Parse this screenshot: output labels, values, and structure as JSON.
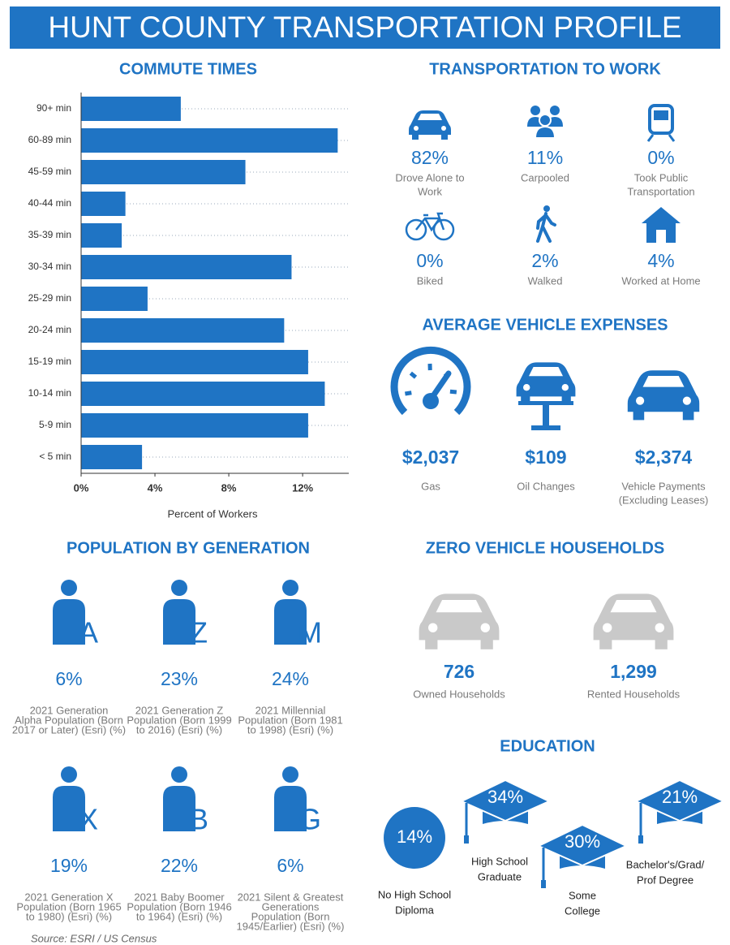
{
  "title": "HUNT COUNTY TRANSPORTATION PROFILE",
  "chart_data": {
    "type": "bar",
    "orientation": "horizontal",
    "title": "COMMUTE TIMES",
    "x_label": "Percent of Workers",
    "categories": [
      "90+ min",
      "60-89 min",
      "45-59 min",
      "40-44 min",
      "35-39 min",
      "30-34 min",
      "25-29 min",
      "20-24 min",
      "15-19 min",
      "10-14 min",
      "5-9 min",
      "< 5 min"
    ],
    "values": [
      5.4,
      13.9,
      8.9,
      2.4,
      2.2,
      11.4,
      3.6,
      11.0,
      12.3,
      13.2,
      12.3,
      3.3
    ],
    "color": "#1f74c4",
    "xlim": [
      0,
      14.5
    ],
    "xticks": [
      {
        "value": 0,
        "label": "0%"
      },
      {
        "value": 4,
        "label": "4%"
      },
      {
        "value": 8,
        "label": "8%"
      },
      {
        "value": 12,
        "label": "12%"
      }
    ]
  },
  "transportation": {
    "title": "TRANSPORTATION TO WORK",
    "items": [
      {
        "pct": "82%",
        "label": [
          "Drove Alone to",
          "Work"
        ]
      },
      {
        "pct": "11%",
        "label": [
          "Carpooled"
        ]
      },
      {
        "pct": "0%",
        "label": [
          "Took Public",
          "Transportation"
        ]
      },
      {
        "pct": "0%",
        "label": [
          "Biked"
        ]
      },
      {
        "pct": "2%",
        "label": [
          "Walked"
        ]
      },
      {
        "pct": "4%",
        "label": [
          "Worked at Home"
        ]
      }
    ]
  },
  "expenses": {
    "title": "AVERAGE VEHICLE EXPENSES",
    "items": [
      {
        "value": "$2,037",
        "label": [
          "Gas"
        ]
      },
      {
        "value": "$109",
        "label": [
          "Oil Changes"
        ]
      },
      {
        "value": "$2,374",
        "label": [
          "Vehicle Payments",
          "(Excluding Leases)"
        ]
      }
    ]
  },
  "generations": {
    "title": "POPULATION BY GENERATION",
    "items": [
      {
        "letter": "A",
        "pct": "6%",
        "label": [
          "2021 Generation",
          "Alpha Population (Born",
          "2017 or Later) (Esri) (%)"
        ]
      },
      {
        "letter": "Z",
        "pct": "23%",
        "label": [
          "2021 Generation Z",
          "Population (Born 1999",
          "to 2016) (Esri) (%)"
        ]
      },
      {
        "letter": "M",
        "pct": "24%",
        "label": [
          "2021 Millennial",
          "Population (Born 1981",
          "to 1998) (Esri) (%)"
        ]
      },
      {
        "letter": "X",
        "pct": "19%",
        "label": [
          "2021 Generation X",
          "Population (Born 1965",
          "to 1980) (Esri) (%)"
        ]
      },
      {
        "letter": "B",
        "pct": "22%",
        "label": [
          "2021 Baby Boomer",
          "Population (Born 1946",
          "to 1964) (Esri) (%)"
        ]
      },
      {
        "letter": "G",
        "pct": "6%",
        "label": [
          "2021 Silent & Greatest",
          "Generations",
          "Population (Born",
          "1945/Earlier) (Esri) (%)"
        ]
      }
    ]
  },
  "zero_vehicle": {
    "title": "ZERO VEHICLE HOUSEHOLDS",
    "items": [
      {
        "value": "726",
        "label": "Owned Households"
      },
      {
        "value": "1,299",
        "label": "Rented Households"
      }
    ]
  },
  "education": {
    "title": "EDUCATION",
    "items": [
      {
        "pct": "14%",
        "label": [
          "No High School",
          "Diploma"
        ]
      },
      {
        "pct": "34%",
        "label": [
          "High School",
          "Graduate"
        ]
      },
      {
        "pct": "30%",
        "label": [
          "Some",
          "College"
        ]
      },
      {
        "pct": "21%",
        "label": [
          "Bachelor's/Grad/",
          "Prof Degree"
        ]
      }
    ]
  },
  "source": "Source: ESRI / US Census"
}
